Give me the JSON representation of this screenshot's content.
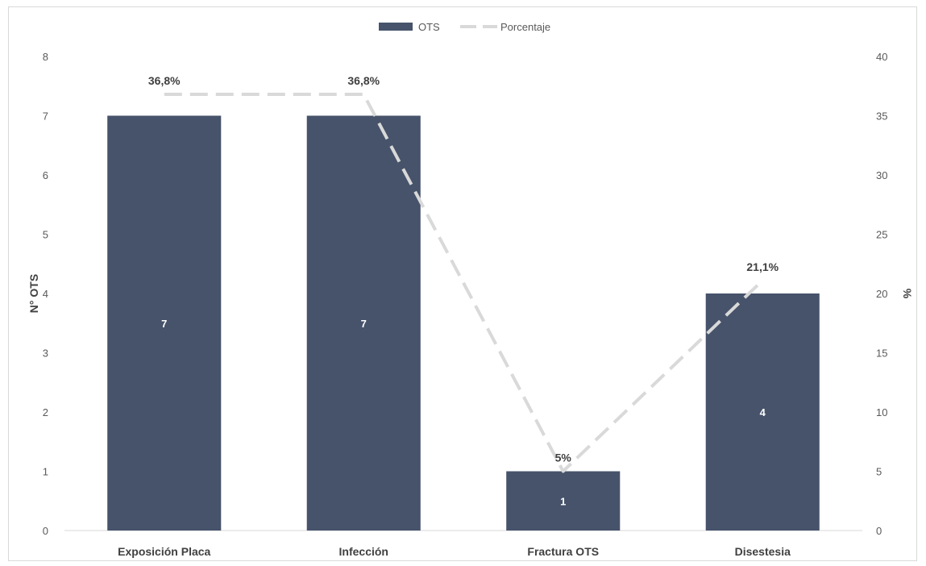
{
  "chart_data": {
    "type": "bar",
    "categories": [
      "Exposición Placa",
      "Infección",
      "Fractura OTS",
      "Disestesia"
    ],
    "series": [
      {
        "name": "OTS",
        "type": "bar",
        "axis": "left",
        "values": [
          7,
          7,
          1,
          4
        ],
        "labels": [
          "7",
          "7",
          "1",
          "4"
        ],
        "color": "#46536a"
      },
      {
        "name": "Porcentaje",
        "type": "line",
        "axis": "right",
        "values": [
          36.8,
          36.8,
          5,
          21.1
        ],
        "labels": [
          "36,8%",
          "36,8%",
          "5%",
          "21,1%"
        ],
        "color": "#d9d9d9",
        "style": "dashed"
      }
    ],
    "ylabel": "N° OTS",
    "y2label": "%",
    "ylim": [
      0,
      8
    ],
    "y2lim": [
      0,
      40
    ],
    "yticks": [
      "0",
      "1",
      "2",
      "3",
      "4",
      "5",
      "6",
      "7",
      "8"
    ],
    "y2ticks": [
      "0",
      "5",
      "10",
      "15",
      "20",
      "25",
      "30",
      "35",
      "40"
    ],
    "grid": false,
    "legend": "top-center"
  }
}
